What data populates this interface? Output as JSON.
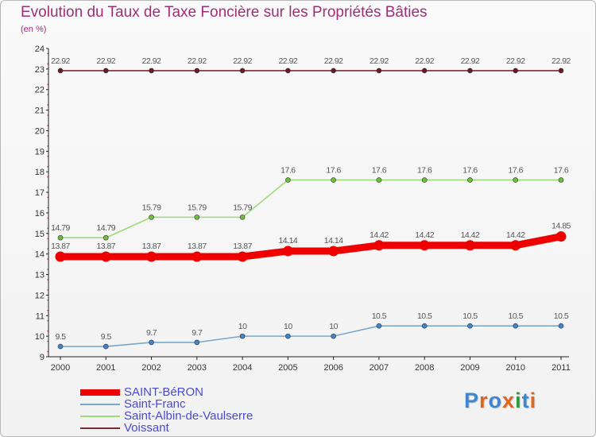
{
  "title": "Evolution du Taux de Taxe Foncière sur les Propriétés Bâties",
  "subtitle": "(en %)",
  "logo_text": "Proxiti",
  "logo_colors": [
    "#3f86cc",
    "#e0641a",
    "#3f86cc",
    "#e0641a",
    "#2a9a3a",
    "#3f86cc",
    "#e0641a"
  ],
  "chart_data": {
    "type": "line",
    "title": "Evolution du Taux de Taxe Foncière sur les Propriétés Bâties",
    "ylabel": "(en %)",
    "xlabel": "",
    "ylim": [
      9,
      24
    ],
    "yticks": [
      "9",
      "10",
      "11",
      "12",
      "13",
      "14",
      "15",
      "16",
      "17",
      "18",
      "19",
      "20",
      "21",
      "22",
      "23",
      "24"
    ],
    "categories": [
      "2000",
      "2001",
      "2002",
      "2003",
      "2004",
      "2005",
      "2006",
      "2007",
      "2008",
      "2009",
      "2010",
      "2011"
    ],
    "series": [
      {
        "name": "Voissant",
        "color": "#7a2a35",
        "marker_color": "#6b1a22",
        "values": [
          22.92,
          22.92,
          22.92,
          22.92,
          22.92,
          22.92,
          22.92,
          22.92,
          22.92,
          22.92,
          22.92,
          22.92
        ],
        "labels": [
          "22.92",
          "22.92",
          "22.92",
          "22.92",
          "22.92",
          "22.92",
          "22.92",
          "22.92",
          "22.92",
          "22.92",
          "22.92",
          "22.92"
        ]
      },
      {
        "name": "Saint-Albin-de-Vaulserre",
        "color": "#9bdc7a",
        "marker_color": "#6dc03a",
        "values": [
          14.79,
          14.79,
          15.79,
          15.79,
          15.79,
          17.6,
          17.6,
          17.6,
          17.6,
          17.6,
          17.6,
          17.6
        ],
        "labels": [
          "14.79",
          "14.79",
          "15.79",
          "15.79",
          "15.79",
          "17.6",
          "17.6",
          "17.6",
          "17.6",
          "17.6",
          "17.6",
          "17.6"
        ]
      },
      {
        "name": "SAINT-BéRON",
        "color": "#ee0000",
        "marker_color": "#ee0000",
        "thick": true,
        "values": [
          13.87,
          13.87,
          13.87,
          13.87,
          13.87,
          14.14,
          14.14,
          14.42,
          14.42,
          14.42,
          14.42,
          14.85
        ],
        "labels": [
          "13.87",
          "13.87",
          "13.87",
          "13.87",
          "13.87",
          "14.14",
          "14.14",
          "14.42",
          "14.42",
          "14.42",
          "14.42",
          "14.85"
        ]
      },
      {
        "name": "Saint-Franc",
        "color": "#7aa8cc",
        "marker_color": "#3f86cc",
        "values": [
          9.5,
          9.5,
          9.7,
          9.7,
          10,
          10,
          10,
          10.5,
          10.5,
          10.5,
          10.5,
          10.5
        ],
        "labels": [
          "9.5",
          "9.5",
          "9.7",
          "9.7",
          "10",
          "10",
          "10",
          "10.5",
          "10.5",
          "10.5",
          "10.5",
          "10.5"
        ]
      }
    ],
    "legend": [
      {
        "name": "SAINT-BéRON",
        "color": "#ee0000",
        "thick": true
      },
      {
        "name": "Saint-Franc",
        "color": "#7aa8cc"
      },
      {
        "name": "Saint-Albin-de-Vaulserre",
        "color": "#9bdc7a"
      },
      {
        "name": "Voissant",
        "color": "#7a2a35"
      }
    ],
    "legend_position": "bottom-left",
    "grid": false
  }
}
